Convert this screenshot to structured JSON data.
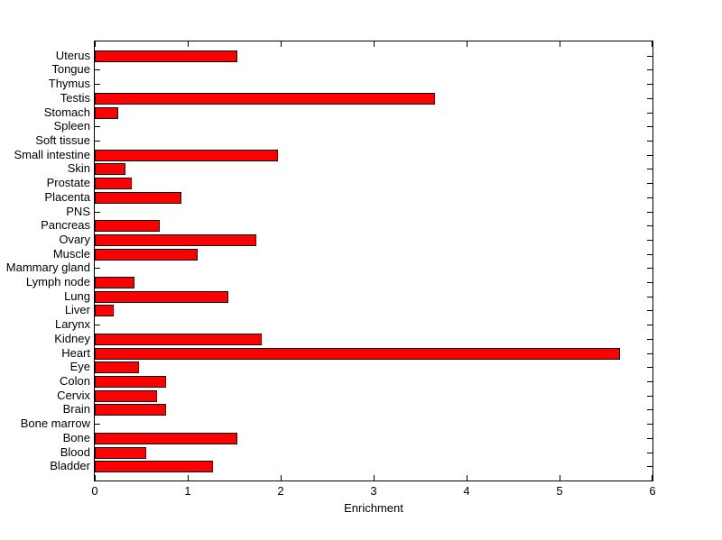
{
  "chart_data": {
    "type": "bar",
    "orientation": "horizontal",
    "title": "",
    "xlabel": "Enrichment",
    "ylabel": "",
    "xlim": [
      0,
      6
    ],
    "xticks": [
      0,
      1,
      2,
      3,
      4,
      5,
      6
    ],
    "xtick_labels": [
      "0",
      "1",
      "2",
      "3",
      "4",
      "5",
      "6"
    ],
    "grid": false,
    "legend": null,
    "box": true,
    "tick_direction": "in",
    "categories_top_to_bottom": [
      "Uterus",
      "Tongue",
      "Thymus",
      "Testis",
      "Stomach",
      "Spleen",
      "Soft tissue",
      "Small intestine",
      "Skin",
      "Prostate",
      "Placenta",
      "PNS",
      "Pancreas",
      "Ovary",
      "Muscle",
      "Mammary gland",
      "Lymph node",
      "Lung",
      "Liver",
      "Larynx",
      "Kidney",
      "Heart",
      "Eye",
      "Colon",
      "Cervix",
      "Brain",
      "Bone marrow",
      "Bone",
      "Blood",
      "Bladder"
    ],
    "values": [
      1.53,
      0,
      0,
      3.66,
      0.25,
      0,
      0,
      1.97,
      0.33,
      0.4,
      0.93,
      0,
      0.7,
      1.74,
      1.11,
      0,
      0.43,
      1.44,
      0.2,
      0,
      1.8,
      5.65,
      0.48,
      0.77,
      0.67,
      0.77,
      0,
      1.53,
      0.55,
      1.27
    ],
    "colors": {
      "bar_fill": "#ff0000",
      "bar_edge": "#000000",
      "axis": "#000000",
      "text": "#000000",
      "background": "#ffffff"
    }
  }
}
